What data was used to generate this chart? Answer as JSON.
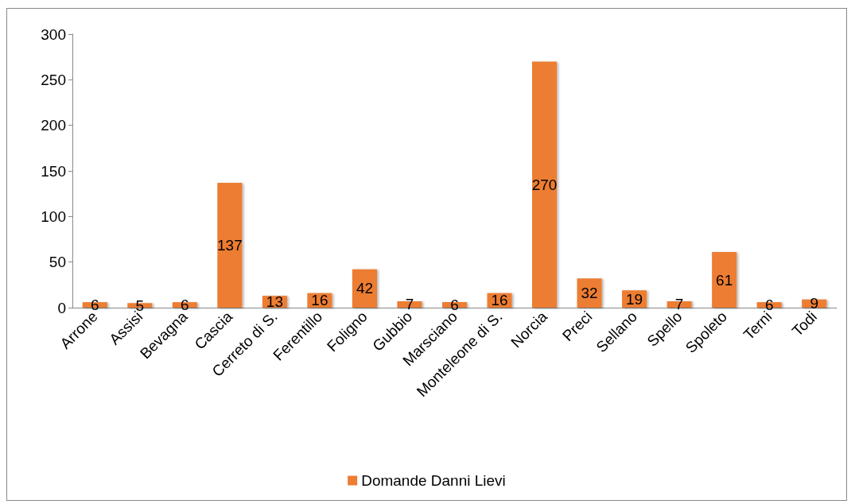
{
  "chart_data": {
    "type": "bar",
    "categories": [
      "Arrone",
      "Assisi",
      "Bevagna",
      "Cascia",
      "Cerreto di S.",
      "Ferentillo",
      "Foligno",
      "Gubbio",
      "Marsciano",
      "Monteleone di S.",
      "Norcia",
      "Preci",
      "Sellano",
      "Spello",
      "Spoleto",
      "Terni",
      "Todi"
    ],
    "series": [
      {
        "name": "Domande Danni Lievi",
        "color": "#ed7d31",
        "values": [
          6,
          5,
          6,
          137,
          13,
          16,
          42,
          7,
          6,
          16,
          270,
          32,
          19,
          7,
          61,
          6,
          9
        ]
      }
    ],
    "ylim": [
      0,
      300
    ],
    "yticks": [
      0,
      50,
      100,
      150,
      200,
      250,
      300
    ],
    "grid": false,
    "legend": "bottom",
    "data_labels": true
  }
}
